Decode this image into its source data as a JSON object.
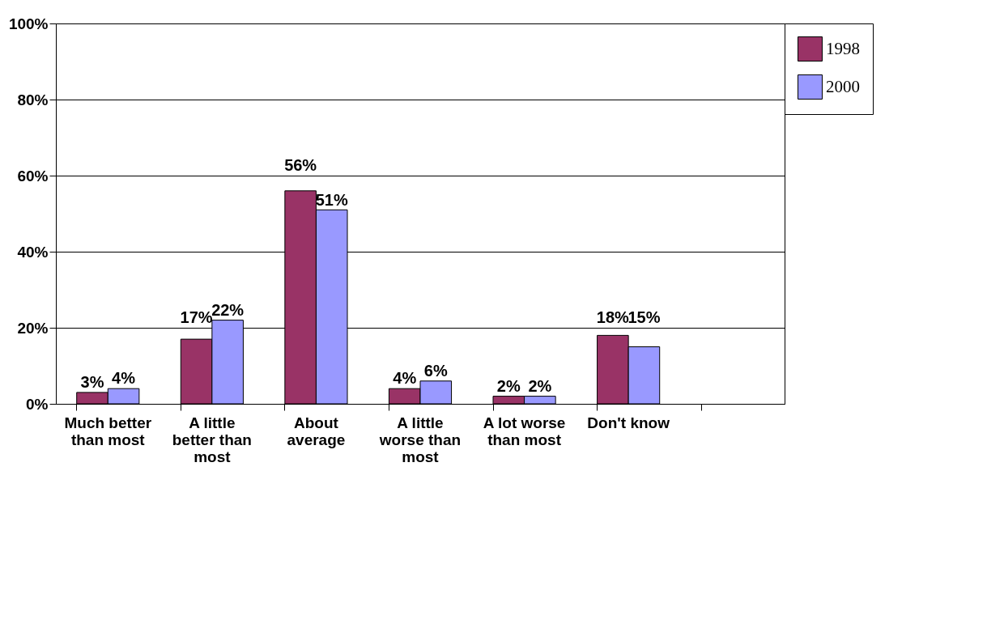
{
  "chart_data": {
    "type": "bar",
    "categories": [
      "Much better than most",
      "A little better than most",
      "About average",
      "A little worse than most",
      "A lot worse than most",
      "Don't know",
      null
    ],
    "series": [
      {
        "name": "1998",
        "color": "#993366",
        "values": [
          3,
          17,
          56,
          4,
          2,
          18,
          null
        ],
        "value_labels": [
          "3%",
          "17%",
          "56%",
          "4%",
          "2%",
          "18%",
          null
        ]
      },
      {
        "name": "2000",
        "color": "#9999ff",
        "values": [
          4,
          22,
          51,
          6,
          2,
          15,
          null
        ],
        "value_labels": [
          "4%",
          "22%",
          "51%",
          "6%",
          "2%",
          "15%",
          null
        ]
      }
    ],
    "ylim": [
      0,
      100
    ],
    "yticks": [
      {
        "value": 0,
        "label": "0%"
      },
      {
        "value": 20,
        "label": "20%"
      },
      {
        "value": 40,
        "label": "40%"
      },
      {
        "value": 60,
        "label": "60%"
      },
      {
        "value": 80,
        "label": "80%"
      },
      {
        "value": 100,
        "label": "100%"
      }
    ],
    "grid": "y",
    "legend": "right"
  }
}
